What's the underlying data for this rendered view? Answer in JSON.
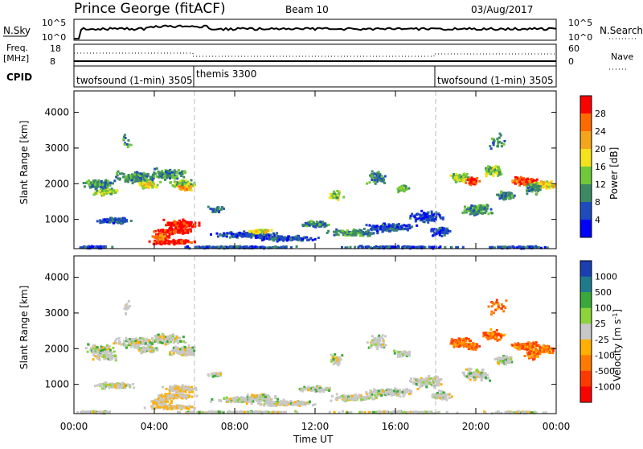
{
  "chart_data": [
    {
      "type": "line",
      "panel": "noise",
      "title_left": "Prince George (fitACF)",
      "title_center": "Beam 10",
      "title_right": "03/Aug/2017",
      "left_label": "N.Sky",
      "right_label": "N.Search",
      "left_ticks": [
        "10^5",
        "10^0"
      ],
      "right_ticks": [
        "10^5",
        "10^0"
      ]
    },
    {
      "type": "line",
      "panel": "freq",
      "left_label_line1": "Freq.",
      "left_label_line2": "[MHz]",
      "right_label": "Nave",
      "left_ticks": [
        "18",
        "8"
      ],
      "right_ticks": [
        "60",
        "0"
      ]
    },
    {
      "type": "table",
      "panel": "cpid",
      "label": "CPID",
      "segments": [
        {
          "name": "twofsound (1-min) 3505",
          "start_h": 0,
          "end_h": 6
        },
        {
          "name": "themis 3300",
          "start_h": 6,
          "end_h": 18
        },
        {
          "name": "twofsound (1-min) 3505",
          "start_h": 18,
          "end_h": 24
        }
      ]
    },
    {
      "type": "heatmap",
      "panel": "power",
      "ylabel": "Slant Range [km]",
      "xlabel": "",
      "x_range_hours": [
        0,
        24
      ],
      "ylim": [
        180,
        4600
      ],
      "yticks": [
        1000,
        2000,
        3000,
        4000
      ],
      "colorbar_label": "Power [dB]",
      "colorbar_ticks": [
        "4",
        "8",
        "12",
        "16",
        "20",
        "24",
        "28"
      ],
      "colors": [
        "#0000ff",
        "#1e4bbe",
        "#3c8a64",
        "#6fc93a",
        "#f3e21c",
        "#f4a51b",
        "#ff6a00",
        "#ff0000"
      ]
    },
    {
      "type": "heatmap",
      "panel": "velocity",
      "ylabel": "Slant Range [km]",
      "xlabel": "Time UT",
      "x_range_hours": [
        0,
        24
      ],
      "ylim": [
        180,
        4600
      ],
      "yticks": [
        1000,
        2000,
        3000,
        4000
      ],
      "xticks": [
        "00:00",
        "04:00",
        "08:00",
        "12:00",
        "16:00",
        "20:00",
        "00:00"
      ],
      "colorbar_label": "Velocity [m s",
      "colorbar_label_sup": "-1",
      "colorbar_label_end": "]",
      "colorbar_ticks": [
        "1000",
        "500",
        "100",
        "25",
        "-25",
        "-100",
        "-500",
        "-1000"
      ],
      "colors": [
        "#1a3fb0",
        "#1f7a8c",
        "#3aa83a",
        "#8cd43a",
        "#c8c8c8",
        "#ffb000",
        "#ff7a00",
        "#ff3a00",
        "#ff0000"
      ]
    }
  ]
}
